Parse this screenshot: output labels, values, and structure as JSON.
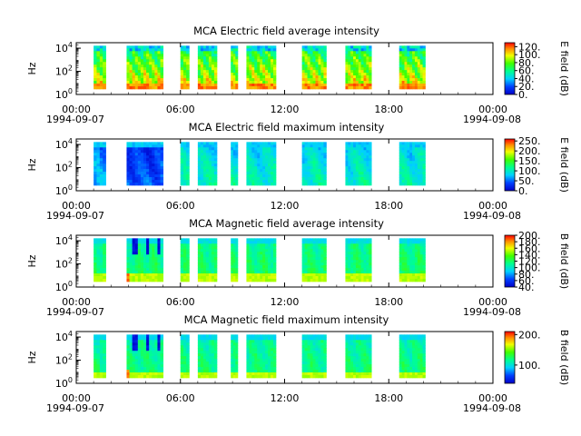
{
  "chart_data": [
    {
      "type": "heatmap",
      "title": "MCA  Electric field average intensity",
      "ylabel": "Hz",
      "y_scale": "log",
      "ylim_hz": [
        1,
        30000
      ],
      "y_ticks": [
        {
          "base": "10",
          "exp": "0"
        },
        {
          "base": "10",
          "exp": "2"
        },
        {
          "base": "10",
          "exp": "4"
        }
      ],
      "x_ticks": [
        "00:00",
        "06:00",
        "12:00",
        "18:00",
        "00:00"
      ],
      "x_start_date": "1994-09-07",
      "x_end_date": "1994-09-08",
      "x_range_hours": [
        0,
        24
      ],
      "data_intervals_hours": [
        [
          1.0,
          1.7
        ],
        [
          2.9,
          5.0
        ],
        [
          6.0,
          6.5
        ],
        [
          7.0,
          8.1
        ],
        [
          8.9,
          9.3
        ],
        [
          9.8,
          11.5
        ],
        [
          13.0,
          14.4
        ],
        [
          15.5,
          17.0
        ],
        [
          18.6,
          20.1
        ]
      ],
      "colorbar": {
        "label": "E field (dB)",
        "range": [
          0,
          130
        ],
        "tick_labels": [
          "0.",
          "20.",
          "40.",
          "60.",
          "80.",
          "100.",
          "120."
        ],
        "tick_values": [
          0,
          20,
          40,
          60,
          80,
          100,
          120
        ]
      },
      "palette": "rainbow (blue low, red high)",
      "style": "avg-e"
    },
    {
      "type": "heatmap",
      "title": "MCA  Electric field maximum intensity",
      "ylabel": "Hz",
      "y_scale": "log",
      "ylim_hz": [
        1,
        30000
      ],
      "y_ticks": [
        {
          "base": "10",
          "exp": "0"
        },
        {
          "base": "10",
          "exp": "2"
        },
        {
          "base": "10",
          "exp": "4"
        }
      ],
      "x_ticks": [
        "00:00",
        "06:00",
        "12:00",
        "18:00",
        "00:00"
      ],
      "x_start_date": "1994-09-07",
      "x_end_date": "1994-09-08",
      "x_range_hours": [
        0,
        24
      ],
      "data_intervals_hours": [
        [
          1.0,
          1.7
        ],
        [
          2.9,
          5.0
        ],
        [
          6.0,
          6.5
        ],
        [
          7.0,
          8.1
        ],
        [
          8.9,
          9.3
        ],
        [
          9.8,
          11.5
        ],
        [
          13.0,
          14.4
        ],
        [
          15.5,
          17.0
        ],
        [
          18.6,
          20.1
        ]
      ],
      "colorbar": {
        "label": "E field (dB)",
        "range": [
          0,
          260
        ],
        "tick_labels": [
          "0.",
          "50.",
          "100.",
          "150.",
          "200.",
          "250."
        ],
        "tick_values": [
          0,
          50,
          100,
          150,
          200,
          250
        ]
      },
      "palette": "rainbow (blue low, red high)",
      "style": "max-e"
    },
    {
      "type": "heatmap",
      "title": "MCA  Magnetic field average intensity",
      "ylabel": "Hz",
      "y_scale": "log",
      "ylim_hz": [
        1,
        30000
      ],
      "y_ticks": [
        {
          "base": "10",
          "exp": "0"
        },
        {
          "base": "10",
          "exp": "2"
        },
        {
          "base": "10",
          "exp": "4"
        }
      ],
      "x_ticks": [
        "00:00",
        "06:00",
        "12:00",
        "18:00",
        "00:00"
      ],
      "x_start_date": "1994-09-07",
      "x_end_date": "1994-09-08",
      "x_range_hours": [
        0,
        24
      ],
      "data_intervals_hours": [
        [
          1.0,
          1.7
        ],
        [
          2.9,
          5.0
        ],
        [
          6.0,
          6.5
        ],
        [
          7.0,
          8.1
        ],
        [
          8.9,
          9.3
        ],
        [
          9.8,
          11.5
        ],
        [
          13.0,
          14.4
        ],
        [
          15.5,
          17.0
        ],
        [
          18.6,
          20.1
        ]
      ],
      "colorbar": {
        "label": "B field (dB)",
        "range": [
          40,
          200
        ],
        "tick_labels": [
          "40.",
          "60.",
          "80.",
          "100.",
          "120.",
          "140.",
          "160.",
          "180.",
          "200."
        ],
        "tick_values": [
          40,
          60,
          80,
          100,
          120,
          140,
          160,
          180,
          200
        ]
      },
      "palette": "rainbow (blue low, red high)",
      "style": "avg-b"
    },
    {
      "type": "heatmap",
      "title": "MCA  Magnetic field maximum intensity",
      "ylabel": "Hz",
      "y_scale": "log",
      "ylim_hz": [
        1,
        30000
      ],
      "y_ticks": [
        {
          "base": "10",
          "exp": "0"
        },
        {
          "base": "10",
          "exp": "2"
        },
        {
          "base": "10",
          "exp": "4"
        }
      ],
      "x_ticks": [
        "00:00",
        "06:00",
        "12:00",
        "18:00",
        "00:00"
      ],
      "x_start_date": "1994-09-07",
      "x_end_date": "1994-09-08",
      "x_range_hours": [
        0,
        24
      ],
      "data_intervals_hours": [
        [
          1.0,
          1.7
        ],
        [
          2.9,
          5.0
        ],
        [
          6.0,
          6.5
        ],
        [
          7.0,
          8.1
        ],
        [
          8.9,
          9.3
        ],
        [
          9.8,
          11.5
        ],
        [
          13.0,
          14.4
        ],
        [
          15.5,
          17.0
        ],
        [
          18.6,
          20.1
        ]
      ],
      "colorbar": {
        "label": "B field (dB)",
        "range": [
          40,
          210
        ],
        "tick_labels": [
          "100.",
          "200."
        ],
        "tick_values": [
          100,
          200
        ]
      },
      "palette": "rainbow (blue low, red high)",
      "style": "max-b"
    }
  ]
}
